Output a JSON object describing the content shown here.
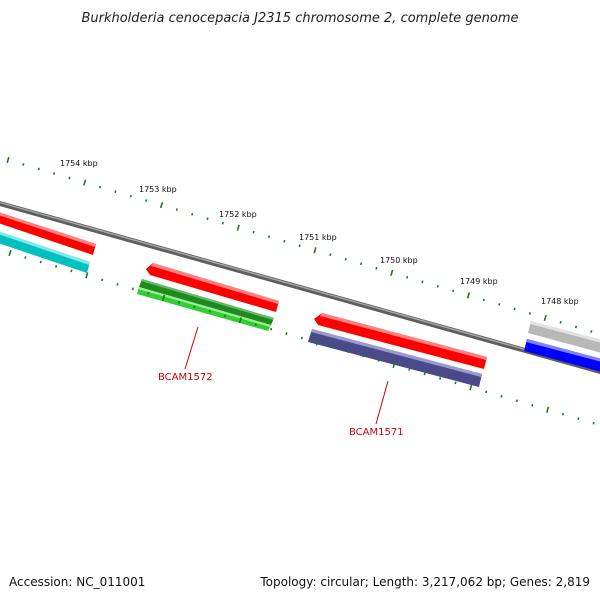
{
  "title": "Burkholderia cenocepacia J2315 chromosome 2, complete genome",
  "scale_labels": [
    "1754 kbp",
    "1753 kbp",
    "1752 kbp",
    "1751 kbp",
    "1750 kbp",
    "1749 kbp",
    "1748 kbp"
  ],
  "gene_labels": [
    "BCAM1572",
    "BCAM1571"
  ],
  "footer": {
    "accession": "Accession: NC_011001",
    "summary": "Topology: circular; Length: 3,217,062 bp; Genes: 2,819"
  },
  "colors": {
    "backbone": "#808080",
    "ticks": "#1f7a1f",
    "red_feature": "#ff0000",
    "cyan_feature": "#00c8c8",
    "green_dark_feature": "#1f8a1f",
    "green_light_feature": "#33cc33",
    "navy_feature": "#4a4a8a",
    "gray_feature": "#b8b8b8",
    "blue_feature": "#0000ff",
    "label_red": "#cc0000"
  }
}
